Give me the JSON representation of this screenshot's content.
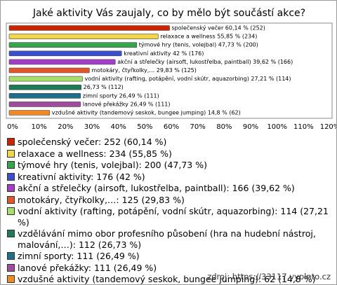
{
  "chart_data": {
    "type": "hbar",
    "title": "Jaké aktivity Vás zaujaly, co by mělo být součástí akce?",
    "categories": [
      "společenský večer",
      "relaxace a wellness",
      "týmové hry (tenis, volejbal)",
      "kreativní aktivity",
      "akční a střelečky (airsoft, lukostřelba, paintball)",
      "motokáry, čtyřkolky,…",
      "vodní aktivity (rafting, potápění, vodní skútr, aquazorbing)",
      "vzdělávání mimo obor profesního působení (hra na hudební nástroj, malování,…)",
      "zimní sporty",
      "lanové překážky",
      "vzdušné aktivity (tandemový seskok, bungee jumping)"
    ],
    "values": [
      60.14,
      55.85,
      47.73,
      42,
      39.62,
      29.83,
      27.21,
      26.73,
      26.49,
      26.49,
      14.8
    ],
    "value_labels": [
      "společenský večer 60,14 % (252)",
      "relaxace a wellness 55,85 % (234)",
      "týmové hry (tenis, volejbal) 47,73 % (200)",
      "kreativní aktivity 42 % (176)",
      "akční a střelečky (airsoft, lukostřelba, paintball) 39,62 % (166)",
      "motokáry, čtyřkolky,… 29,83 % (125)",
      "vodní aktivity (rafting, potápění, vodní skútr, aquazorbing) 27,21 % (114)",
      "26,73 % (112)",
      "zimní sporty 26,49 % (111)",
      "lanové překážky 26,49 % (111)",
      "vzdušné aktivity (tandemový seskok, bungee jumping) 14,8 % (62)"
    ],
    "colors": [
      "#cc2200",
      "#f2d648",
      "#33a64a",
      "#3a4fcf",
      "#a63cc8",
      "#e0552a",
      "#a6e06a",
      "#1d7a55",
      "#1f6f8a",
      "#a04c9c",
      "#f08a24"
    ],
    "legend": [
      "společenský večer: 252 (60,14 %)",
      "relaxace a wellness: 234 (55,85 %)",
      "týmové hry (tenis, volejbal): 200 (47,73 %)",
      "kreativní aktivity: 176 (42 %)",
      "akční a střelečky (airsoft, lukostřelba, paintball): 166 (39,62 %)",
      "motokáry, čtyřkolky,…: 125 (29,83 %)",
      "vodní aktivity (rafting, potápění, vodní skútr, aquazorbing): 114 (27,21 %)",
      "vzdělávání mimo obor profesního působení (hra na hudební nástroj, malování,…): 112 (26,73 %)",
      "zimní sporty: 111 (26,49 %)",
      "lanové překážky: 111 (26,49 %)",
      "vzdušné aktivity (tandemový seskok, bungee jumping): 62 (14,8 %)"
    ],
    "xlim": [
      0,
      120
    ],
    "xticks": [
      {
        "value": 0,
        "label": "0%"
      },
      {
        "value": 10,
        "label": "10%"
      },
      {
        "value": 20,
        "label": "20%"
      },
      {
        "value": 30,
        "label": "30%"
      },
      {
        "value": 40,
        "label": "40%"
      },
      {
        "value": 50,
        "label": "50%"
      },
      {
        "value": 60,
        "label": "60%"
      },
      {
        "value": 70,
        "label": "70%"
      },
      {
        "value": 80,
        "label": "80%"
      },
      {
        "value": 90,
        "label": "90%"
      },
      {
        "value": 100,
        "label": "100%"
      },
      {
        "value": 110,
        "label": "110%"
      },
      {
        "value": 120,
        "label": "120%"
      }
    ],
    "source": "zdroj: https://33117.vyplnto.cz"
  }
}
